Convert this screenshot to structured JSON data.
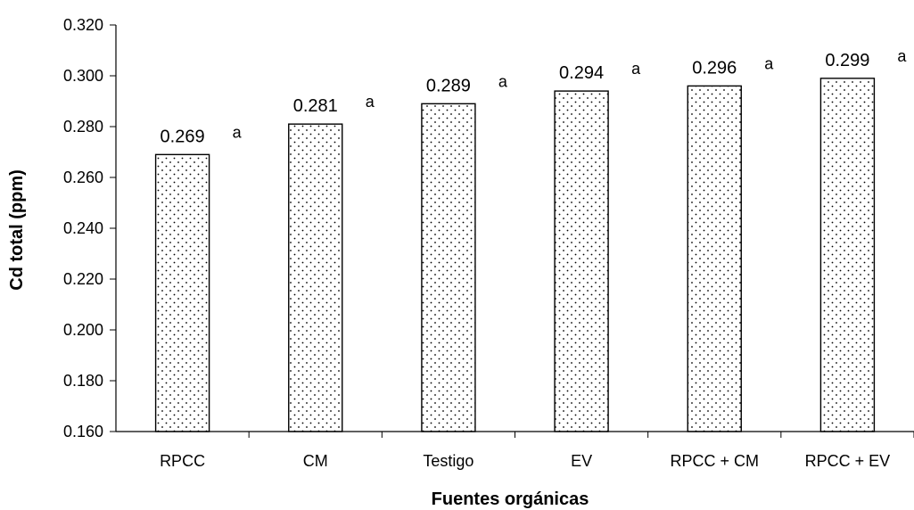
{
  "chart_data": {
    "type": "bar",
    "title": "",
    "xlabel": "Fuentes orgánicas",
    "ylabel": "Cd total (ppm)",
    "categories": [
      "RPCC",
      "CM",
      "Testigo",
      "EV",
      "RPCC + CM",
      "RPCC + EV"
    ],
    "values": [
      0.269,
      0.281,
      0.289,
      0.294,
      0.296,
      0.299
    ],
    "data_labels": [
      "0.269",
      "0.281",
      "0.289",
      "0.294",
      "0.296",
      "0.299"
    ],
    "significance_letters": [
      "a",
      "a",
      "a",
      "a",
      "a",
      "a"
    ],
    "ylim": [
      0.16,
      0.32
    ],
    "yticks": [
      0.16,
      0.18,
      0.2,
      0.22,
      0.24,
      0.26,
      0.28,
      0.3,
      0.32
    ],
    "ytick_labels": [
      "0.160",
      "0.180",
      "0.200",
      "0.220",
      "0.240",
      "0.260",
      "0.280",
      "0.300",
      "0.320"
    ],
    "grid": false,
    "legend": "none",
    "bar_fill": "dotted-pattern",
    "colors": {
      "bar_outline": "#000000",
      "bar_dots": "#000000",
      "background": "#ffffff",
      "axis": "#000000"
    }
  }
}
